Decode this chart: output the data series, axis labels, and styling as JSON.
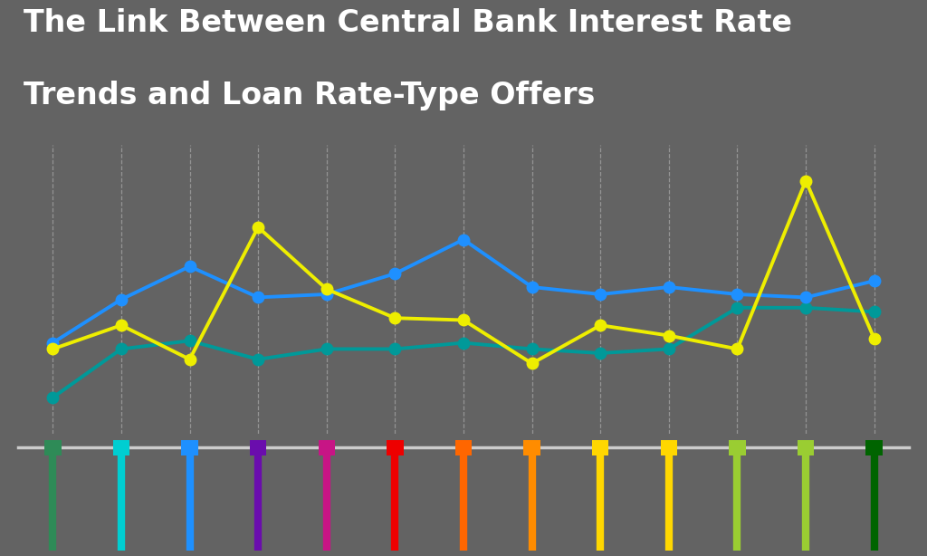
{
  "title_line1": "The Link Between Central Bank Interest Rate",
  "title_line2": "Trends and Loan Rate-Type Offers",
  "background_color": "#636363",
  "title_color": "#ffffff",
  "title_fontsize": 24,
  "n_points": 13,
  "line_teal_color": "#009999",
  "line_blue_color": "#1E90FF",
  "line_yellow_color": "#EEEE00",
  "line_teal_values": [
    0.35,
    0.82,
    0.9,
    0.72,
    0.82,
    0.82,
    0.88,
    0.82,
    0.78,
    0.82,
    1.22,
    1.22,
    1.18
  ],
  "line_blue_values": [
    0.88,
    1.3,
    1.62,
    1.32,
    1.35,
    1.55,
    1.88,
    1.42,
    1.35,
    1.42,
    1.35,
    1.32,
    1.48
  ],
  "line_yellow_values": [
    0.82,
    1.05,
    0.72,
    2.0,
    1.4,
    1.12,
    1.1,
    0.68,
    1.05,
    0.95,
    0.82,
    2.45,
    0.92
  ],
  "tick_colors": [
    "#2E8B57",
    "#00CED1",
    "#1E90FF",
    "#6A0DAD",
    "#C71585",
    "#EE0000",
    "#FF6600",
    "#FF8C00",
    "#FFD700",
    "#FFD700",
    "#9ACD32",
    "#9ACD32",
    "#006400"
  ],
  "dashed_line_color": "#aaaaaa",
  "axis_line_color": "#cccccc",
  "ylim_min": 0.0,
  "ylim_max": 2.8,
  "marker_size": 9
}
